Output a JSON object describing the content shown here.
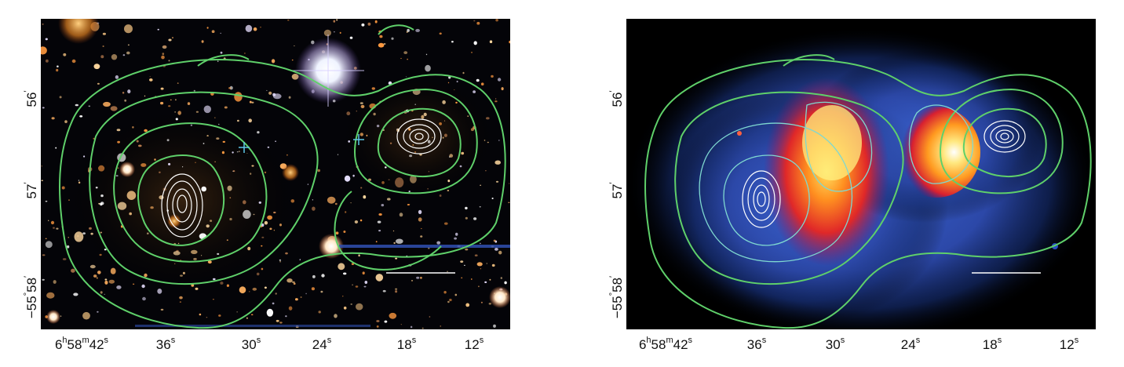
{
  "left_panel": {
    "y_ticks": [
      {
        "main": "56",
        "sup": "′"
      },
      {
        "main": "57",
        "sup": "′"
      },
      {
        "prefix": "−55",
        "deg": "°",
        "main": "58",
        "sup": "′"
      }
    ],
    "x_ticks": [
      {
        "h": "6",
        "hs": "h",
        "m": "58",
        "ms": "m",
        "s": "42",
        "ss": "s"
      },
      {
        "s": "36",
        "ss": "s"
      },
      {
        "s": "30",
        "ss": "s"
      },
      {
        "s": "24",
        "ss": "s"
      },
      {
        "s": "18",
        "ss": "s"
      },
      {
        "s": "12",
        "ss": "s"
      }
    ]
  },
  "right_panel": {
    "y_ticks": [
      {
        "main": "56",
        "sup": "′"
      },
      {
        "main": "57",
        "sup": "′"
      },
      {
        "prefix": "−55",
        "deg": "°",
        "main": "58",
        "sup": "′"
      }
    ],
    "x_ticks": [
      {
        "h": "6",
        "hs": "h",
        "m": "58",
        "ms": "m",
        "s": "42",
        "ss": "s"
      },
      {
        "s": "36",
        "ss": "s"
      },
      {
        "s": "30",
        "ss": "s"
      },
      {
        "s": "24",
        "ss": "s"
      },
      {
        "s": "18",
        "ss": "s"
      },
      {
        "s": "12",
        "ss": "s"
      }
    ]
  },
  "colors": {
    "lensing_contour": "#5fd06a",
    "xray_contour": "#7fd8d0",
    "peak_contour": "#ffffff",
    "marker_cross": "#5ec8e8"
  }
}
